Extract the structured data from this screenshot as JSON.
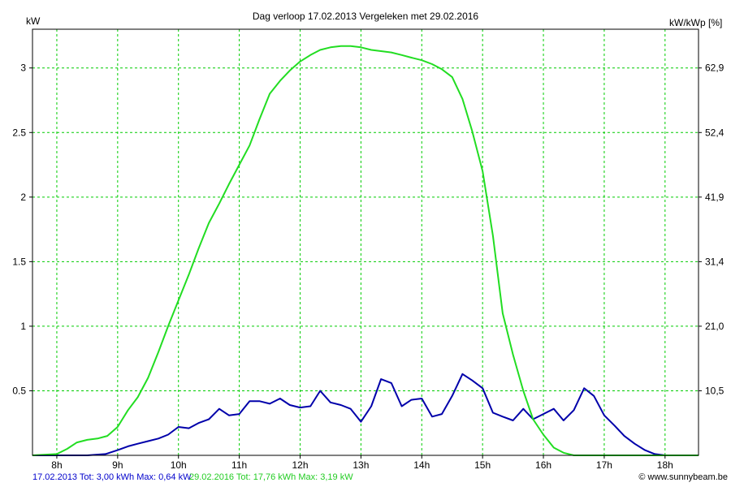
{
  "chart_data": {
    "type": "line",
    "title": "Dag  verloop 17.02.2013   Vergeleken met 29.02.2016",
    "ylabel_left": "kW",
    "ylabel_right": "kW/kWp [%]",
    "x_ticks": [
      "8h",
      "9h",
      "10h",
      "11h",
      "12h",
      "13h",
      "14h",
      "15h",
      "16h",
      "17h",
      "18h"
    ],
    "x_tick_values": [
      8,
      9,
      10,
      11,
      12,
      13,
      14,
      15,
      16,
      17,
      18
    ],
    "xlim": [
      7.6,
      18.55
    ],
    "ylim": [
      0,
      3.3
    ],
    "y_ticks_left": [
      "0.5",
      "1",
      "1.5",
      "2",
      "2.5",
      "3"
    ],
    "y_tick_values": [
      0.5,
      1,
      1.5,
      2,
      2.5,
      3
    ],
    "y_ticks_right": [
      "10,5",
      "21,0",
      "31,4",
      "41,9",
      "52,4",
      "62,9"
    ],
    "grid": true,
    "grid_color": "#00cc00",
    "series": [
      {
        "name": "17.02.2013",
        "color": "#0000aa",
        "x": [
          7.6,
          8.0,
          8.5,
          8.8,
          9.0,
          9.17,
          9.33,
          9.5,
          9.67,
          9.83,
          10.0,
          10.17,
          10.33,
          10.5,
          10.67,
          10.83,
          11.0,
          11.17,
          11.33,
          11.5,
          11.67,
          11.83,
          12.0,
          12.17,
          12.33,
          12.5,
          12.67,
          12.83,
          13.0,
          13.17,
          13.33,
          13.5,
          13.67,
          13.83,
          14.0,
          14.17,
          14.33,
          14.5,
          14.67,
          14.83,
          15.0,
          15.17,
          15.33,
          15.5,
          15.67,
          15.83,
          16.0,
          16.17,
          16.33,
          16.5,
          16.67,
          16.83,
          17.0,
          17.17,
          17.33,
          17.5,
          17.67,
          17.83,
          18.0,
          18.2,
          18.55
        ],
        "y": [
          0,
          0,
          0,
          0.01,
          0.04,
          0.07,
          0.09,
          0.11,
          0.13,
          0.16,
          0.22,
          0.21,
          0.25,
          0.28,
          0.36,
          0.31,
          0.32,
          0.42,
          0.42,
          0.4,
          0.44,
          0.39,
          0.37,
          0.38,
          0.5,
          0.41,
          0.39,
          0.36,
          0.26,
          0.38,
          0.59,
          0.56,
          0.38,
          0.43,
          0.44,
          0.3,
          0.32,
          0.46,
          0.63,
          0.58,
          0.52,
          0.33,
          0.3,
          0.27,
          0.36,
          0.28,
          0.32,
          0.36,
          0.27,
          0.35,
          0.52,
          0.46,
          0.31,
          0.23,
          0.15,
          0.09,
          0.04,
          0.01,
          0,
          0,
          0
        ]
      },
      {
        "name": "29.02.2016",
        "color": "#22dd22",
        "x": [
          7.6,
          8.0,
          8.17,
          8.33,
          8.5,
          8.67,
          8.83,
          9.0,
          9.17,
          9.33,
          9.5,
          9.67,
          9.83,
          10.0,
          10.17,
          10.33,
          10.5,
          10.67,
          10.83,
          11.0,
          11.17,
          11.33,
          11.5,
          11.67,
          11.83,
          12.0,
          12.17,
          12.33,
          12.5,
          12.67,
          12.83,
          13.0,
          13.17,
          13.33,
          13.5,
          13.67,
          13.83,
          14.0,
          14.17,
          14.33,
          14.5,
          14.67,
          14.83,
          15.0,
          15.17,
          15.33,
          15.5,
          15.67,
          15.83,
          16.0,
          16.17,
          16.33,
          16.5,
          16.67,
          16.83,
          17.0,
          17.17,
          17.33,
          17.5,
          17.67,
          17.83,
          18.0,
          18.17,
          18.55
        ],
        "y": [
          0,
          0.01,
          0.05,
          0.1,
          0.12,
          0.13,
          0.15,
          0.22,
          0.35,
          0.45,
          0.6,
          0.8,
          1.0,
          1.2,
          1.4,
          1.6,
          1.8,
          1.95,
          2.1,
          2.25,
          2.4,
          2.6,
          2.8,
          2.9,
          2.98,
          3.05,
          3.1,
          3.14,
          3.16,
          3.17,
          3.17,
          3.16,
          3.14,
          3.13,
          3.12,
          3.1,
          3.08,
          3.06,
          3.03,
          2.99,
          2.93,
          2.76,
          2.51,
          2.2,
          1.7,
          1.1,
          0.78,
          0.5,
          0.28,
          0.16,
          0.06,
          0.02,
          0,
          0,
          0,
          0,
          0,
          0,
          0,
          0,
          0,
          0,
          0,
          0
        ]
      }
    ],
    "legend": {
      "line1": "17.02.2013 Tot: 3,00 kWh Max: 0,64 kW",
      "line2": "29.02.2016 Tot: 17,76 kWh Max: 3,19 kW"
    },
    "credit": "© www.sunnybeam.be"
  }
}
